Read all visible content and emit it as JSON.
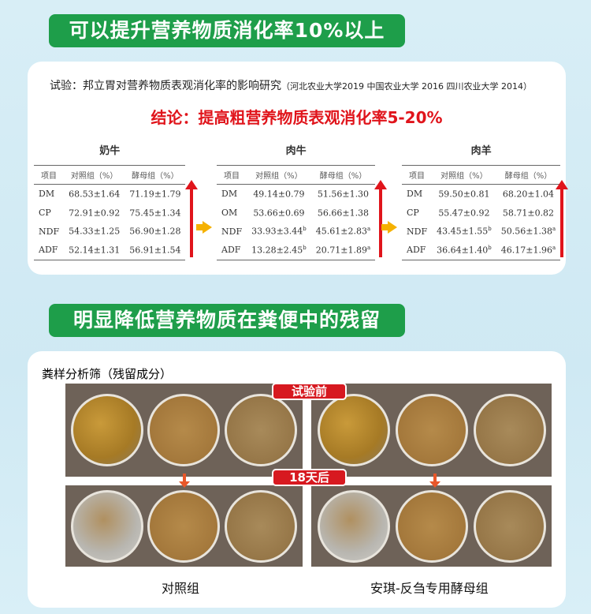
{
  "banner1": "可以提升营养物质消化率10%以上",
  "study": {
    "label": "试验：邦立胃对营养物质表观消化率的影响研究",
    "source": "（河北农业大学2019 中国农业大学 2016 四川农业大学  2014）"
  },
  "conclusion": "结论：提高粗营养物质表观消化率5-20%",
  "headers": [
    "项目",
    "对照组（%）",
    "酵母组（%）"
  ],
  "tables": [
    {
      "title": "奶牛",
      "rows": [
        [
          "DM",
          "68.53±1.64",
          "",
          "71.19±1.79",
          ""
        ],
        [
          "CP",
          "72.91±0.92",
          "",
          "75.45±1.34",
          ""
        ],
        [
          "NDF",
          "54.33±1.25",
          "",
          "56.90±1.28",
          ""
        ],
        [
          "ADF",
          "52.14±1.31",
          "",
          "56.91±1.54",
          ""
        ]
      ]
    },
    {
      "title": "肉牛",
      "rows": [
        [
          "DM",
          "49.14±0.79",
          "",
          "51.56±1.30",
          ""
        ],
        [
          "OM",
          "53.66±0.69",
          "",
          "56.66±1.38",
          ""
        ],
        [
          "NDF",
          "33.93±3.44",
          "b",
          "45.61±2.83",
          "a"
        ],
        [
          "ADF",
          "13.28±2.45",
          "b",
          "20.71±1.89",
          "a"
        ]
      ]
    },
    {
      "title": "肉羊",
      "rows": [
        [
          "DM",
          "59.50±0.81",
          "",
          "68.20±1.04",
          ""
        ],
        [
          "CP",
          "55.47±0.92",
          "",
          "58.71±0.82",
          ""
        ],
        [
          "NDF",
          "43.45±1.55",
          "b",
          "50.56±1.38",
          "a"
        ],
        [
          "ADF",
          "36.64±1.40",
          "b",
          "46.17±1.96",
          "a"
        ]
      ]
    }
  ],
  "banner2": "明显降低营养物质在粪便中的残留",
  "sieve_title": "粪样分析筛（残留成分）",
  "before_label": "试验前",
  "after_label": "18天后",
  "captions": [
    "对照组",
    "安琪-反刍专用酵母组"
  ]
}
